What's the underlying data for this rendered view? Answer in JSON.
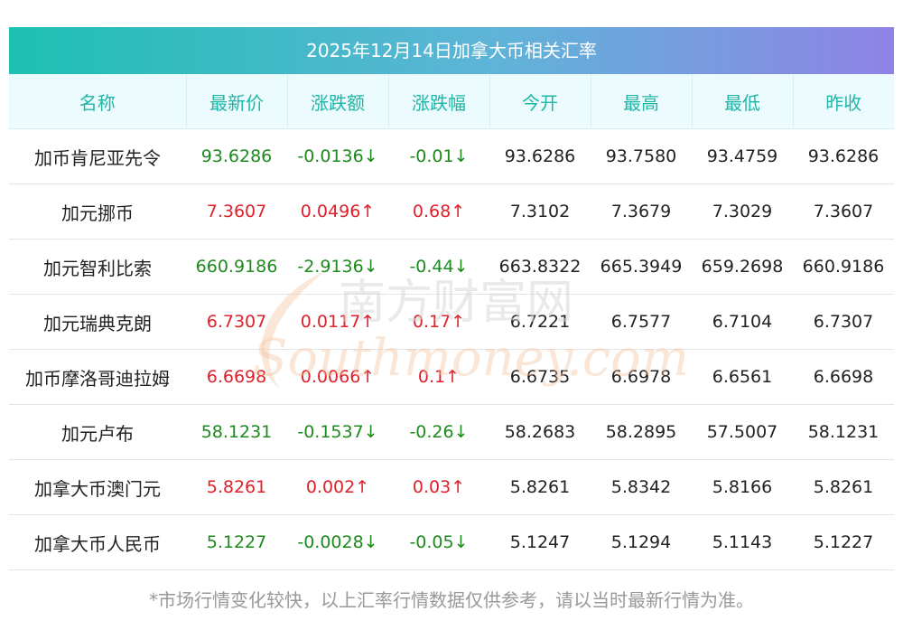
{
  "title": "2025年12月14日加拿大币相关汇率",
  "headers": [
    "名称",
    "最新价",
    "涨跌额",
    "涨跌幅",
    "今开",
    "最高",
    "最低",
    "昨收"
  ],
  "rows": [
    {
      "name": "加币肯尼亚先令",
      "latest": "93.6286",
      "change": "-0.0136",
      "change_pct": "-0.01",
      "dir": "down",
      "open": "93.6286",
      "high": "93.7580",
      "low": "93.4759",
      "prev_close": "93.6286"
    },
    {
      "name": "加元挪币",
      "latest": "7.3607",
      "change": "0.0496",
      "change_pct": "0.68",
      "dir": "up",
      "open": "7.3102",
      "high": "7.3679",
      "low": "7.3029",
      "prev_close": "7.3607"
    },
    {
      "name": "加元智利比索",
      "latest": "660.9186",
      "change": "-2.9136",
      "change_pct": "-0.44",
      "dir": "down",
      "open": "663.8322",
      "high": "665.3949",
      "low": "659.2698",
      "prev_close": "660.9186"
    },
    {
      "name": "加元瑞典克朗",
      "latest": "6.7307",
      "change": "0.0117",
      "change_pct": "0.17",
      "dir": "up",
      "open": "6.7221",
      "high": "6.7577",
      "low": "6.7104",
      "prev_close": "6.7307"
    },
    {
      "name": "加币摩洛哥迪拉姆",
      "latest": "6.6698",
      "change": "0.0066",
      "change_pct": "0.1",
      "dir": "up",
      "open": "6.6735",
      "high": "6.6978",
      "low": "6.6561",
      "prev_close": "6.6698"
    },
    {
      "name": "加元卢布",
      "latest": "58.1231",
      "change": "-0.1537",
      "change_pct": "-0.26",
      "dir": "down",
      "open": "58.2683",
      "high": "58.2895",
      "low": "57.5007",
      "prev_close": "58.1231"
    },
    {
      "name": "加拿大币澳门元",
      "latest": "5.8261",
      "change": "0.002",
      "change_pct": "0.03",
      "dir": "up",
      "open": "5.8261",
      "high": "5.8342",
      "low": "5.8166",
      "prev_close": "5.8261"
    },
    {
      "name": "加拿大币人民币",
      "latest": "5.1227",
      "change": "-0.0028",
      "change_pct": "-0.05",
      "dir": "down",
      "open": "5.1247",
      "high": "5.1294",
      "low": "5.1143",
      "prev_close": "5.1227"
    }
  ],
  "arrows": {
    "up": "↑",
    "down": "↓"
  },
  "colors": {
    "up": "#e0202a",
    "down": "#1e8a1e",
    "header_text": "#1fb6a8"
  },
  "watermark": {
    "cn": "南方财富网",
    "en": "Southmoney.com"
  },
  "footer_note": "*市场行情变化较快，以上汇率行情数据仅供参考，请以当时最新行情为准。"
}
